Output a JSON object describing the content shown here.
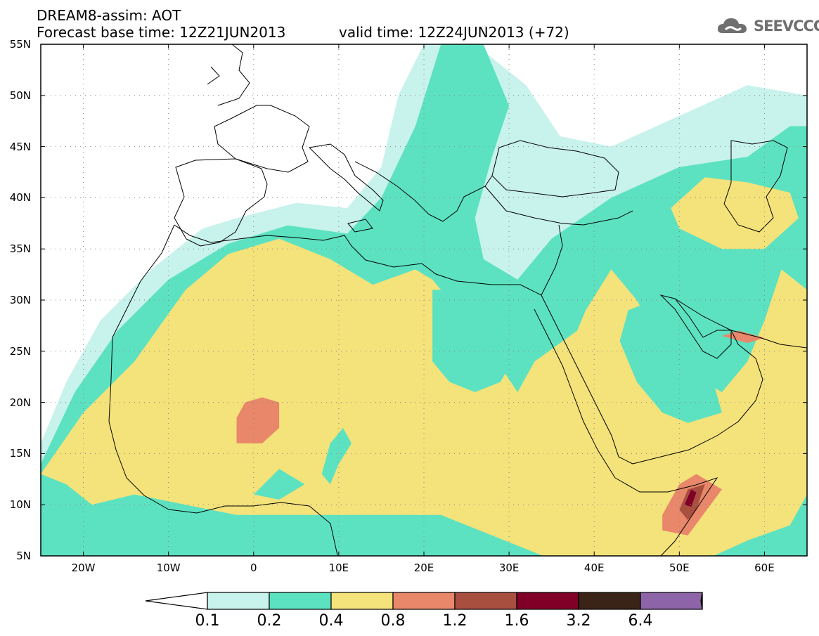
{
  "title": {
    "line1": "DREAM8-assim: AOT",
    "line2": "Forecast base time: 12Z21JUN2013",
    "valid": "valid time: 12Z24JUN2013 (+72)"
  },
  "logo": {
    "text": "SEEVCCC",
    "icon": "cloud-icon"
  },
  "map": {
    "projection": "equirectangular",
    "lon_range": [
      -25,
      65
    ],
    "lat_range": [
      5,
      55
    ],
    "gridlines": true,
    "lat_labels": [
      "55N",
      "50N",
      "45N",
      "40N",
      "35N",
      "30N",
      "25N",
      "20N",
      "15N",
      "10N",
      "5N"
    ],
    "lon_labels": [
      "20W",
      "10W",
      "0",
      "10E",
      "20E",
      "30E",
      "40E",
      "50E",
      "60E"
    ],
    "fill_regions": [
      {
        "class": 0,
        "points": [
          [
            -25,
            16
          ],
          [
            -22,
            22
          ],
          [
            -18,
            28
          ],
          [
            -12,
            33
          ],
          [
            -6,
            37
          ],
          [
            -2,
            38
          ],
          [
            5,
            39.5
          ],
          [
            11,
            39
          ],
          [
            15,
            43
          ],
          [
            17,
            50
          ],
          [
            20,
            55
          ],
          [
            26,
            55
          ],
          [
            32,
            51
          ],
          [
            36,
            46
          ],
          [
            42,
            45
          ],
          [
            50,
            48
          ],
          [
            58,
            51
          ],
          [
            65,
            50
          ],
          [
            65,
            5
          ],
          [
            -25,
            5
          ]
        ]
      },
      {
        "class": 1,
        "points": [
          [
            -25,
            14
          ],
          [
            -21,
            21
          ],
          [
            -16,
            27
          ],
          [
            -10,
            32
          ],
          [
            -3,
            35.5
          ],
          [
            4,
            37.3
          ],
          [
            11,
            36.5
          ],
          [
            15,
            40
          ],
          [
            19,
            47
          ],
          [
            22,
            55
          ],
          [
            27,
            55
          ],
          [
            30,
            49
          ],
          [
            28,
            44
          ],
          [
            26,
            38
          ],
          [
            27,
            34
          ],
          [
            31,
            32
          ],
          [
            35,
            36
          ],
          [
            42,
            40
          ],
          [
            50,
            43
          ],
          [
            58,
            44
          ],
          [
            63,
            47
          ],
          [
            65,
            47
          ],
          [
            65,
            5
          ],
          [
            -25,
            5
          ]
        ]
      },
      {
        "class": 2,
        "points": [
          [
            -25,
            13
          ],
          [
            -20,
            19
          ],
          [
            -14,
            24
          ],
          [
            -8,
            31
          ],
          [
            -3,
            34.5
          ],
          [
            3,
            36
          ],
          [
            9,
            34
          ],
          [
            14,
            31.5
          ],
          [
            19,
            33
          ],
          [
            21,
            32
          ],
          [
            22,
            31
          ],
          [
            25,
            28
          ],
          [
            27,
            26
          ],
          [
            29,
            23.5
          ],
          [
            31,
            21
          ],
          [
            33,
            24
          ],
          [
            38,
            27
          ],
          [
            39,
            29
          ],
          [
            42,
            33
          ],
          [
            45,
            30
          ],
          [
            47,
            27
          ],
          [
            51,
            23
          ],
          [
            55,
            21
          ],
          [
            58,
            24
          ],
          [
            60,
            28
          ],
          [
            62,
            33
          ],
          [
            65,
            31
          ],
          [
            65,
            11
          ],
          [
            63,
            8
          ],
          [
            58,
            6.5
          ],
          [
            54,
            5
          ],
          [
            34,
            5
          ],
          [
            28,
            7
          ],
          [
            22,
            9
          ],
          [
            14,
            9
          ],
          [
            6,
            9
          ],
          [
            -2,
            9
          ],
          [
            -8,
            10
          ],
          [
            -14,
            11
          ],
          [
            -19,
            10
          ],
          [
            -22,
            12
          ]
        ]
      },
      {
        "class": 2,
        "points": [
          [
            49,
            39
          ],
          [
            53,
            42
          ],
          [
            58,
            41.5
          ],
          [
            63,
            40.5
          ],
          [
            64,
            38
          ],
          [
            60,
            35
          ],
          [
            55,
            35
          ],
          [
            50,
            37
          ]
        ]
      },
      {
        "class": 1,
        "points": [
          [
            8,
            13
          ],
          [
            9,
            16
          ],
          [
            10.5,
            17.5
          ],
          [
            11.5,
            16
          ],
          [
            10,
            14
          ],
          [
            9,
            12
          ]
        ]
      },
      {
        "class": 1,
        "points": [
          [
            0,
            11
          ],
          [
            3,
            13.5
          ],
          [
            6,
            12
          ],
          [
            3,
            10.5
          ]
        ]
      },
      {
        "class": 1,
        "points": [
          [
            21,
            27
          ],
          [
            21,
            31
          ],
          [
            24,
            31
          ],
          [
            29,
            28
          ],
          [
            31,
            25
          ],
          [
            29,
            22
          ],
          [
            26,
            21
          ],
          [
            23,
            22
          ],
          [
            21,
            24
          ]
        ]
      },
      {
        "class": 1,
        "points": [
          [
            43,
            26
          ],
          [
            44,
            29
          ],
          [
            47,
            30
          ],
          [
            49,
            28
          ],
          [
            52,
            25
          ],
          [
            54,
            22
          ],
          [
            55,
            19
          ],
          [
            51,
            18
          ],
          [
            48,
            19
          ],
          [
            45,
            22
          ]
        ]
      },
      {
        "class": 3,
        "points": [
          [
            -2,
            18.5
          ],
          [
            -1,
            20
          ],
          [
            1,
            20.5
          ],
          [
            3,
            20
          ],
          [
            3,
            17.5
          ],
          [
            1,
            16
          ],
          [
            -2,
            16
          ]
        ]
      },
      {
        "class": 3,
        "points": [
          [
            48,
            9
          ],
          [
            50,
            12
          ],
          [
            52,
            13
          ],
          [
            55,
            11.5
          ],
          [
            51,
            7
          ],
          [
            48,
            7.5
          ]
        ]
      },
      {
        "class": 4,
        "points": [
          [
            50,
            9.5
          ],
          [
            51,
            11.5
          ],
          [
            53,
            12
          ],
          [
            52,
            9.5
          ],
          [
            51,
            8.5
          ]
        ]
      },
      {
        "class": 5,
        "points": [
          [
            50.6,
            10
          ],
          [
            51.4,
            11.5
          ],
          [
            52,
            11.2
          ],
          [
            51.4,
            9.8
          ]
        ]
      },
      {
        "class": 3,
        "points": [
          [
            55,
            26.5
          ],
          [
            57,
            27
          ],
          [
            60,
            26.3
          ],
          [
            58,
            25.8
          ]
        ]
      }
    ]
  },
  "colorbar": {
    "labels": [
      "0.1",
      "0.2",
      "0.4",
      "0.8",
      "1.2",
      "1.6",
      "3.2",
      "6.4"
    ],
    "colors": [
      "#ffffff",
      "#c8f2ec",
      "#5ce2c1",
      "#f4e27a",
      "#e8876a",
      "#a84f40",
      "#800028",
      "#3a2418",
      "#8e64a8"
    ]
  },
  "colors": {
    "land": "#ffffff",
    "coastline": "#000000",
    "gridline": "#888888"
  }
}
